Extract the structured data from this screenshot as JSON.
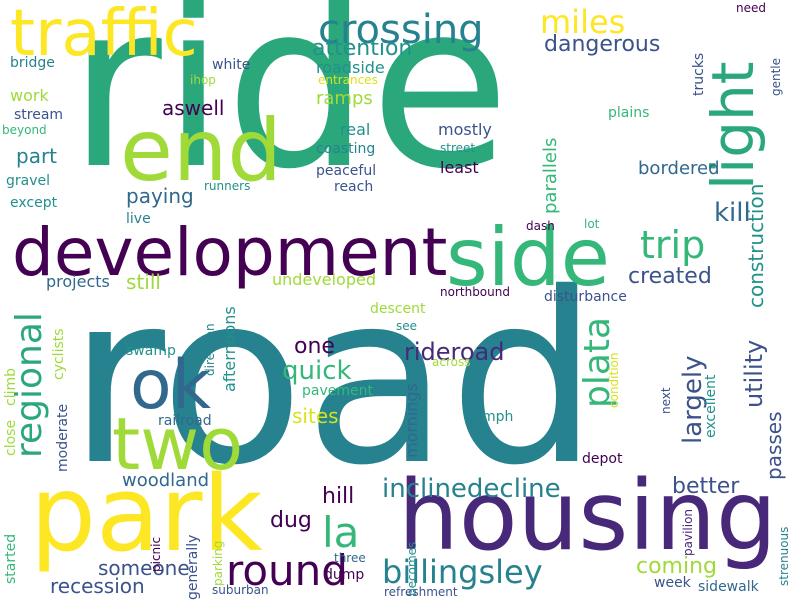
{
  "words": [
    {
      "id": "ride",
      "text": "ride"
    },
    {
      "id": "road",
      "text": "road"
    },
    {
      "id": "housing",
      "text": "housing"
    },
    {
      "id": "park",
      "text": "park"
    },
    {
      "id": "development",
      "text": "development"
    },
    {
      "id": "end",
      "text": "end"
    },
    {
      "id": "side",
      "text": "side"
    },
    {
      "id": "traffic",
      "text": "traffic"
    },
    {
      "id": "two",
      "text": "two"
    },
    {
      "id": "ok",
      "text": "ok"
    },
    {
      "id": "light",
      "text": "light"
    },
    {
      "id": "crossing",
      "text": "crossing"
    },
    {
      "id": "miles",
      "text": "miles"
    },
    {
      "id": "trip",
      "text": "trip"
    },
    {
      "id": "round",
      "text": "round"
    },
    {
      "id": "regional",
      "text": "regional"
    },
    {
      "id": "billingsley",
      "text": "billingsley"
    },
    {
      "id": "plata",
      "text": "plata"
    },
    {
      "id": "la",
      "text": "la"
    },
    {
      "id": "inclinedecline",
      "text": "inclinedecline"
    },
    {
      "id": "rideroad",
      "text": "rideroad"
    },
    {
      "id": "attention",
      "text": "attention"
    },
    {
      "id": "dangerous",
      "text": "dangerous"
    },
    {
      "id": "kill",
      "text": "kill"
    },
    {
      "id": "construction",
      "text": "construction"
    },
    {
      "id": "largely",
      "text": "largely"
    },
    {
      "id": "utility",
      "text": "utility"
    },
    {
      "id": "passes",
      "text": "passes"
    },
    {
      "id": "created",
      "text": "created"
    },
    {
      "id": "better",
      "text": "better"
    },
    {
      "id": "quick",
      "text": "quick"
    },
    {
      "id": "one",
      "text": "one"
    },
    {
      "id": "hill",
      "text": "hill"
    },
    {
      "id": "dug",
      "text": "dug"
    },
    {
      "id": "coming",
      "text": "coming"
    },
    {
      "id": "someone",
      "text": "someone"
    },
    {
      "id": "recession",
      "text": "recession"
    },
    {
      "id": "woodland",
      "text": "woodland"
    },
    {
      "id": "sites",
      "text": "sites"
    },
    {
      "id": "part",
      "text": "part"
    },
    {
      "id": "aswell",
      "text": "aswell"
    },
    {
      "id": "paying",
      "text": "paying"
    },
    {
      "id": "still",
      "text": "still"
    },
    {
      "id": "projects",
      "text": "projects"
    },
    {
      "id": "undeveloped",
      "text": "undeveloped"
    },
    {
      "id": "parallels",
      "text": "parallels"
    },
    {
      "id": "bordered",
      "text": "bordered"
    },
    {
      "id": "afternoons",
      "text": "afternoons"
    },
    {
      "id": "mornings",
      "text": "mornings"
    },
    {
      "id": "ramps",
      "text": "ramps"
    },
    {
      "id": "roadside",
      "text": "roadside"
    },
    {
      "id": "real",
      "text": "real"
    },
    {
      "id": "coasting",
      "text": "coasting"
    },
    {
      "id": "peaceful",
      "text": "peaceful"
    },
    {
      "id": "reach",
      "text": "reach"
    },
    {
      "id": "mostly",
      "text": "mostly"
    },
    {
      "id": "least",
      "text": "least"
    },
    {
      "id": "street",
      "text": "street"
    },
    {
      "id": "plains",
      "text": "plains"
    },
    {
      "id": "gentle",
      "text": "gentle"
    },
    {
      "id": "trucks",
      "text": "trucks"
    },
    {
      "id": "need",
      "text": "need"
    },
    {
      "id": "work",
      "text": "work"
    },
    {
      "id": "bridge",
      "text": "bridge"
    },
    {
      "id": "white",
      "text": "white"
    },
    {
      "id": "ihop",
      "text": "ihop"
    },
    {
      "id": "entrances",
      "text": "entrances"
    },
    {
      "id": "stream",
      "text": "stream"
    },
    {
      "id": "beyond",
      "text": "beyond"
    },
    {
      "id": "gravel",
      "text": "gravel"
    },
    {
      "id": "except",
      "text": "except"
    },
    {
      "id": "runners",
      "text": "runners"
    },
    {
      "id": "live",
      "text": "live"
    },
    {
      "id": "dash",
      "text": "dash"
    },
    {
      "id": "lot",
      "text": "lot"
    },
    {
      "id": "descent",
      "text": "descent"
    },
    {
      "id": "northbound",
      "text": "northbound"
    },
    {
      "id": "disturbance",
      "text": "disturbance"
    },
    {
      "id": "see",
      "text": "see"
    },
    {
      "id": "pavement",
      "text": "pavement"
    },
    {
      "id": "swamp",
      "text": "swamp"
    },
    {
      "id": "direction",
      "text": "direction"
    },
    {
      "id": "railroad",
      "text": "railroad"
    },
    {
      "id": "climb",
      "text": "climb"
    },
    {
      "id": "cyclists",
      "text": "cyclists"
    },
    {
      "id": "moderate",
      "text": "moderate"
    },
    {
      "id": "close",
      "text": "close"
    },
    {
      "id": "across",
      "text": "across"
    },
    {
      "id": "condition",
      "text": "condition"
    },
    {
      "id": "mph",
      "text": "mph"
    },
    {
      "id": "next",
      "text": "next"
    },
    {
      "id": "excellent",
      "text": "excellent"
    },
    {
      "id": "depot",
      "text": "depot"
    },
    {
      "id": "started",
      "text": "started"
    },
    {
      "id": "picnic",
      "text": "picnic"
    },
    {
      "id": "generally",
      "text": "generally"
    },
    {
      "id": "parking",
      "text": "parking"
    },
    {
      "id": "becomes",
      "text": "becomes"
    },
    {
      "id": "three",
      "text": "three"
    },
    {
      "id": "dump",
      "text": "dump"
    },
    {
      "id": "suburban",
      "text": "suburban"
    },
    {
      "id": "refreshment",
      "text": "refreshment"
    },
    {
      "id": "week",
      "text": "week"
    },
    {
      "id": "sidewalk",
      "text": "sidewalk"
    },
    {
      "id": "pavilion",
      "text": "pavilion"
    },
    {
      "id": "strenuous",
      "text": "strenuous"
    }
  ]
}
